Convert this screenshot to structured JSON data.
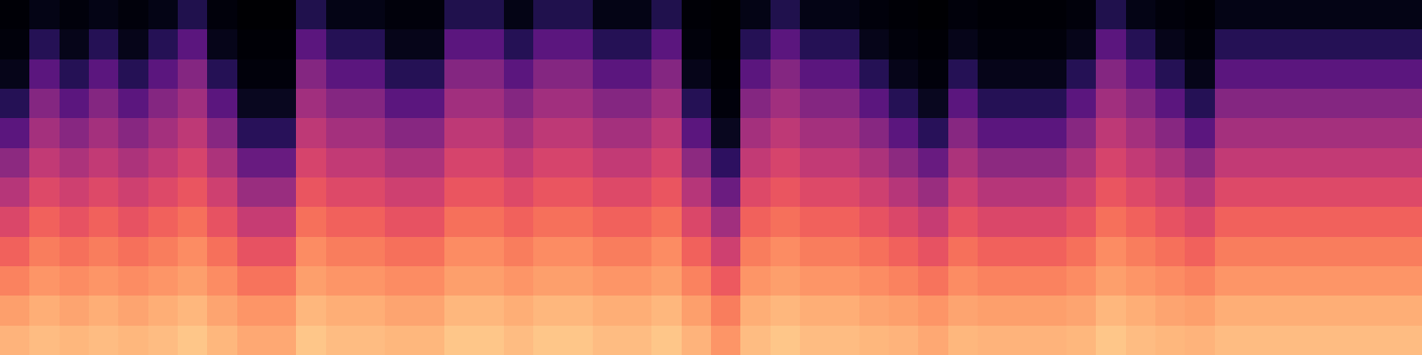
{
  "chart_data": {
    "type": "heatmap",
    "color": "magma",
    "tick_labels": false,
    "cell_range": [
      0,
      100
    ],
    "cells": [
      [
        84,
        86,
        85,
        86,
        85,
        86,
        88,
        85,
        82,
        82,
        88,
        86,
        86,
        85,
        85,
        88,
        88,
        86,
        88,
        88,
        86,
        86,
        88,
        84,
        78,
        86,
        88,
        86,
        86,
        85,
        84,
        82,
        85,
        84,
        84,
        84,
        85,
        88,
        86,
        85,
        84,
        86,
        86,
        86,
        86,
        86,
        86,
        86
      ],
      [
        80,
        83,
        81,
        83,
        81,
        83,
        85,
        81,
        78,
        78,
        85,
        83,
        83,
        81,
        81,
        85,
        85,
        83,
        85,
        85,
        83,
        83,
        85,
        80,
        73,
        83,
        85,
        83,
        83,
        81,
        80,
        78,
        81,
        80,
        80,
        80,
        81,
        85,
        83,
        81,
        80,
        83,
        83,
        83,
        83,
        83,
        83,
        83
      ],
      [
        74,
        78,
        76,
        78,
        76,
        78,
        80,
        76,
        71,
        71,
        80,
        78,
        78,
        76,
        76,
        80,
        80,
        78,
        80,
        80,
        78,
        78,
        80,
        74,
        65,
        78,
        80,
        78,
        78,
        76,
        74,
        71,
        76,
        74,
        74,
        74,
        76,
        80,
        78,
        76,
        74,
        78,
        78,
        78,
        78,
        78,
        78,
        78
      ],
      [
        67,
        73,
        70,
        73,
        70,
        73,
        76,
        70,
        63,
        63,
        76,
        73,
        73,
        70,
        70,
        76,
        76,
        73,
        76,
        76,
        73,
        73,
        76,
        67,
        56,
        73,
        76,
        73,
        73,
        70,
        67,
        63,
        70,
        67,
        67,
        67,
        70,
        76,
        73,
        70,
        67,
        73,
        73,
        73,
        73,
        73,
        73,
        73
      ],
      [
        59,
        67,
        63,
        67,
        63,
        67,
        70,
        63,
        54,
        54,
        70,
        67,
        67,
        63,
        63,
        70,
        70,
        67,
        70,
        70,
        67,
        67,
        70,
        59,
        45,
        67,
        70,
        67,
        67,
        63,
        59,
        54,
        63,
        59,
        59,
        59,
        63,
        70,
        67,
        63,
        59,
        67,
        67,
        67,
        67,
        67,
        67,
        67
      ],
      [
        50,
        60,
        56,
        60,
        56,
        60,
        64,
        56,
        43,
        43,
        64,
        60,
        60,
        56,
        56,
        64,
        64,
        60,
        64,
        64,
        60,
        60,
        64,
        50,
        32,
        60,
        64,
        60,
        60,
        56,
        50,
        43,
        56,
        50,
        50,
        50,
        56,
        64,
        60,
        56,
        50,
        60,
        60,
        60,
        60,
        60,
        60,
        60
      ],
      [
        40,
        53,
        48,
        53,
        48,
        53,
        58,
        48,
        31,
        31,
        58,
        53,
        53,
        48,
        48,
        58,
        58,
        53,
        58,
        58,
        53,
        53,
        58,
        40,
        17,
        53,
        58,
        53,
        53,
        48,
        40,
        31,
        48,
        40,
        40,
        40,
        48,
        58,
        53,
        48,
        40,
        53,
        53,
        53,
        53,
        53,
        53,
        53
      ],
      [
        28,
        46,
        39,
        46,
        39,
        46,
        52,
        39,
        16,
        16,
        52,
        46,
        46,
        39,
        39,
        52,
        52,
        46,
        52,
        52,
        46,
        46,
        52,
        28,
        6,
        46,
        52,
        46,
        46,
        39,
        28,
        16,
        39,
        28,
        28,
        28,
        39,
        52,
        46,
        39,
        28,
        46,
        46,
        46,
        46,
        46,
        46,
        46
      ],
      [
        15,
        38,
        28,
        38,
        28,
        38,
        45,
        28,
        6,
        6,
        45,
        38,
        38,
        28,
        28,
        45,
        45,
        38,
        45,
        45,
        38,
        38,
        45,
        15,
        2,
        38,
        45,
        38,
        38,
        28,
        15,
        6,
        28,
        15,
        15,
        15,
        28,
        45,
        38,
        28,
        15,
        38,
        38,
        38,
        38,
        38,
        38,
        38
      ],
      [
        5,
        28,
        15,
        28,
        15,
        28,
        38,
        15,
        2,
        2,
        38,
        28,
        28,
        15,
        15,
        38,
        38,
        28,
        38,
        38,
        28,
        28,
        38,
        5,
        1,
        28,
        38,
        28,
        28,
        15,
        5,
        2,
        15,
        5,
        5,
        5,
        15,
        38,
        28,
        15,
        5,
        28,
        28,
        28,
        28,
        28,
        28,
        28
      ],
      [
        2,
        15,
        5,
        15,
        5,
        15,
        28,
        5,
        1,
        1,
        28,
        15,
        15,
        5,
        5,
        28,
        28,
        15,
        28,
        28,
        15,
        15,
        28,
        2,
        0,
        15,
        28,
        15,
        15,
        5,
        2,
        1,
        5,
        2,
        2,
        2,
        5,
        28,
        15,
        5,
        2,
        15,
        15,
        15,
        15,
        15,
        15,
        15
      ],
      [
        1,
        4,
        2,
        4,
        2,
        4,
        14,
        2,
        0,
        0,
        14,
        4,
        4,
        2,
        2,
        14,
        14,
        4,
        14,
        14,
        4,
        4,
        14,
        1,
        0,
        4,
        14,
        4,
        4,
        2,
        1,
        0,
        2,
        1,
        1,
        1,
        2,
        14,
        4,
        2,
        1,
        4,
        4,
        4,
        4,
        4,
        4,
        4
      ]
    ]
  }
}
